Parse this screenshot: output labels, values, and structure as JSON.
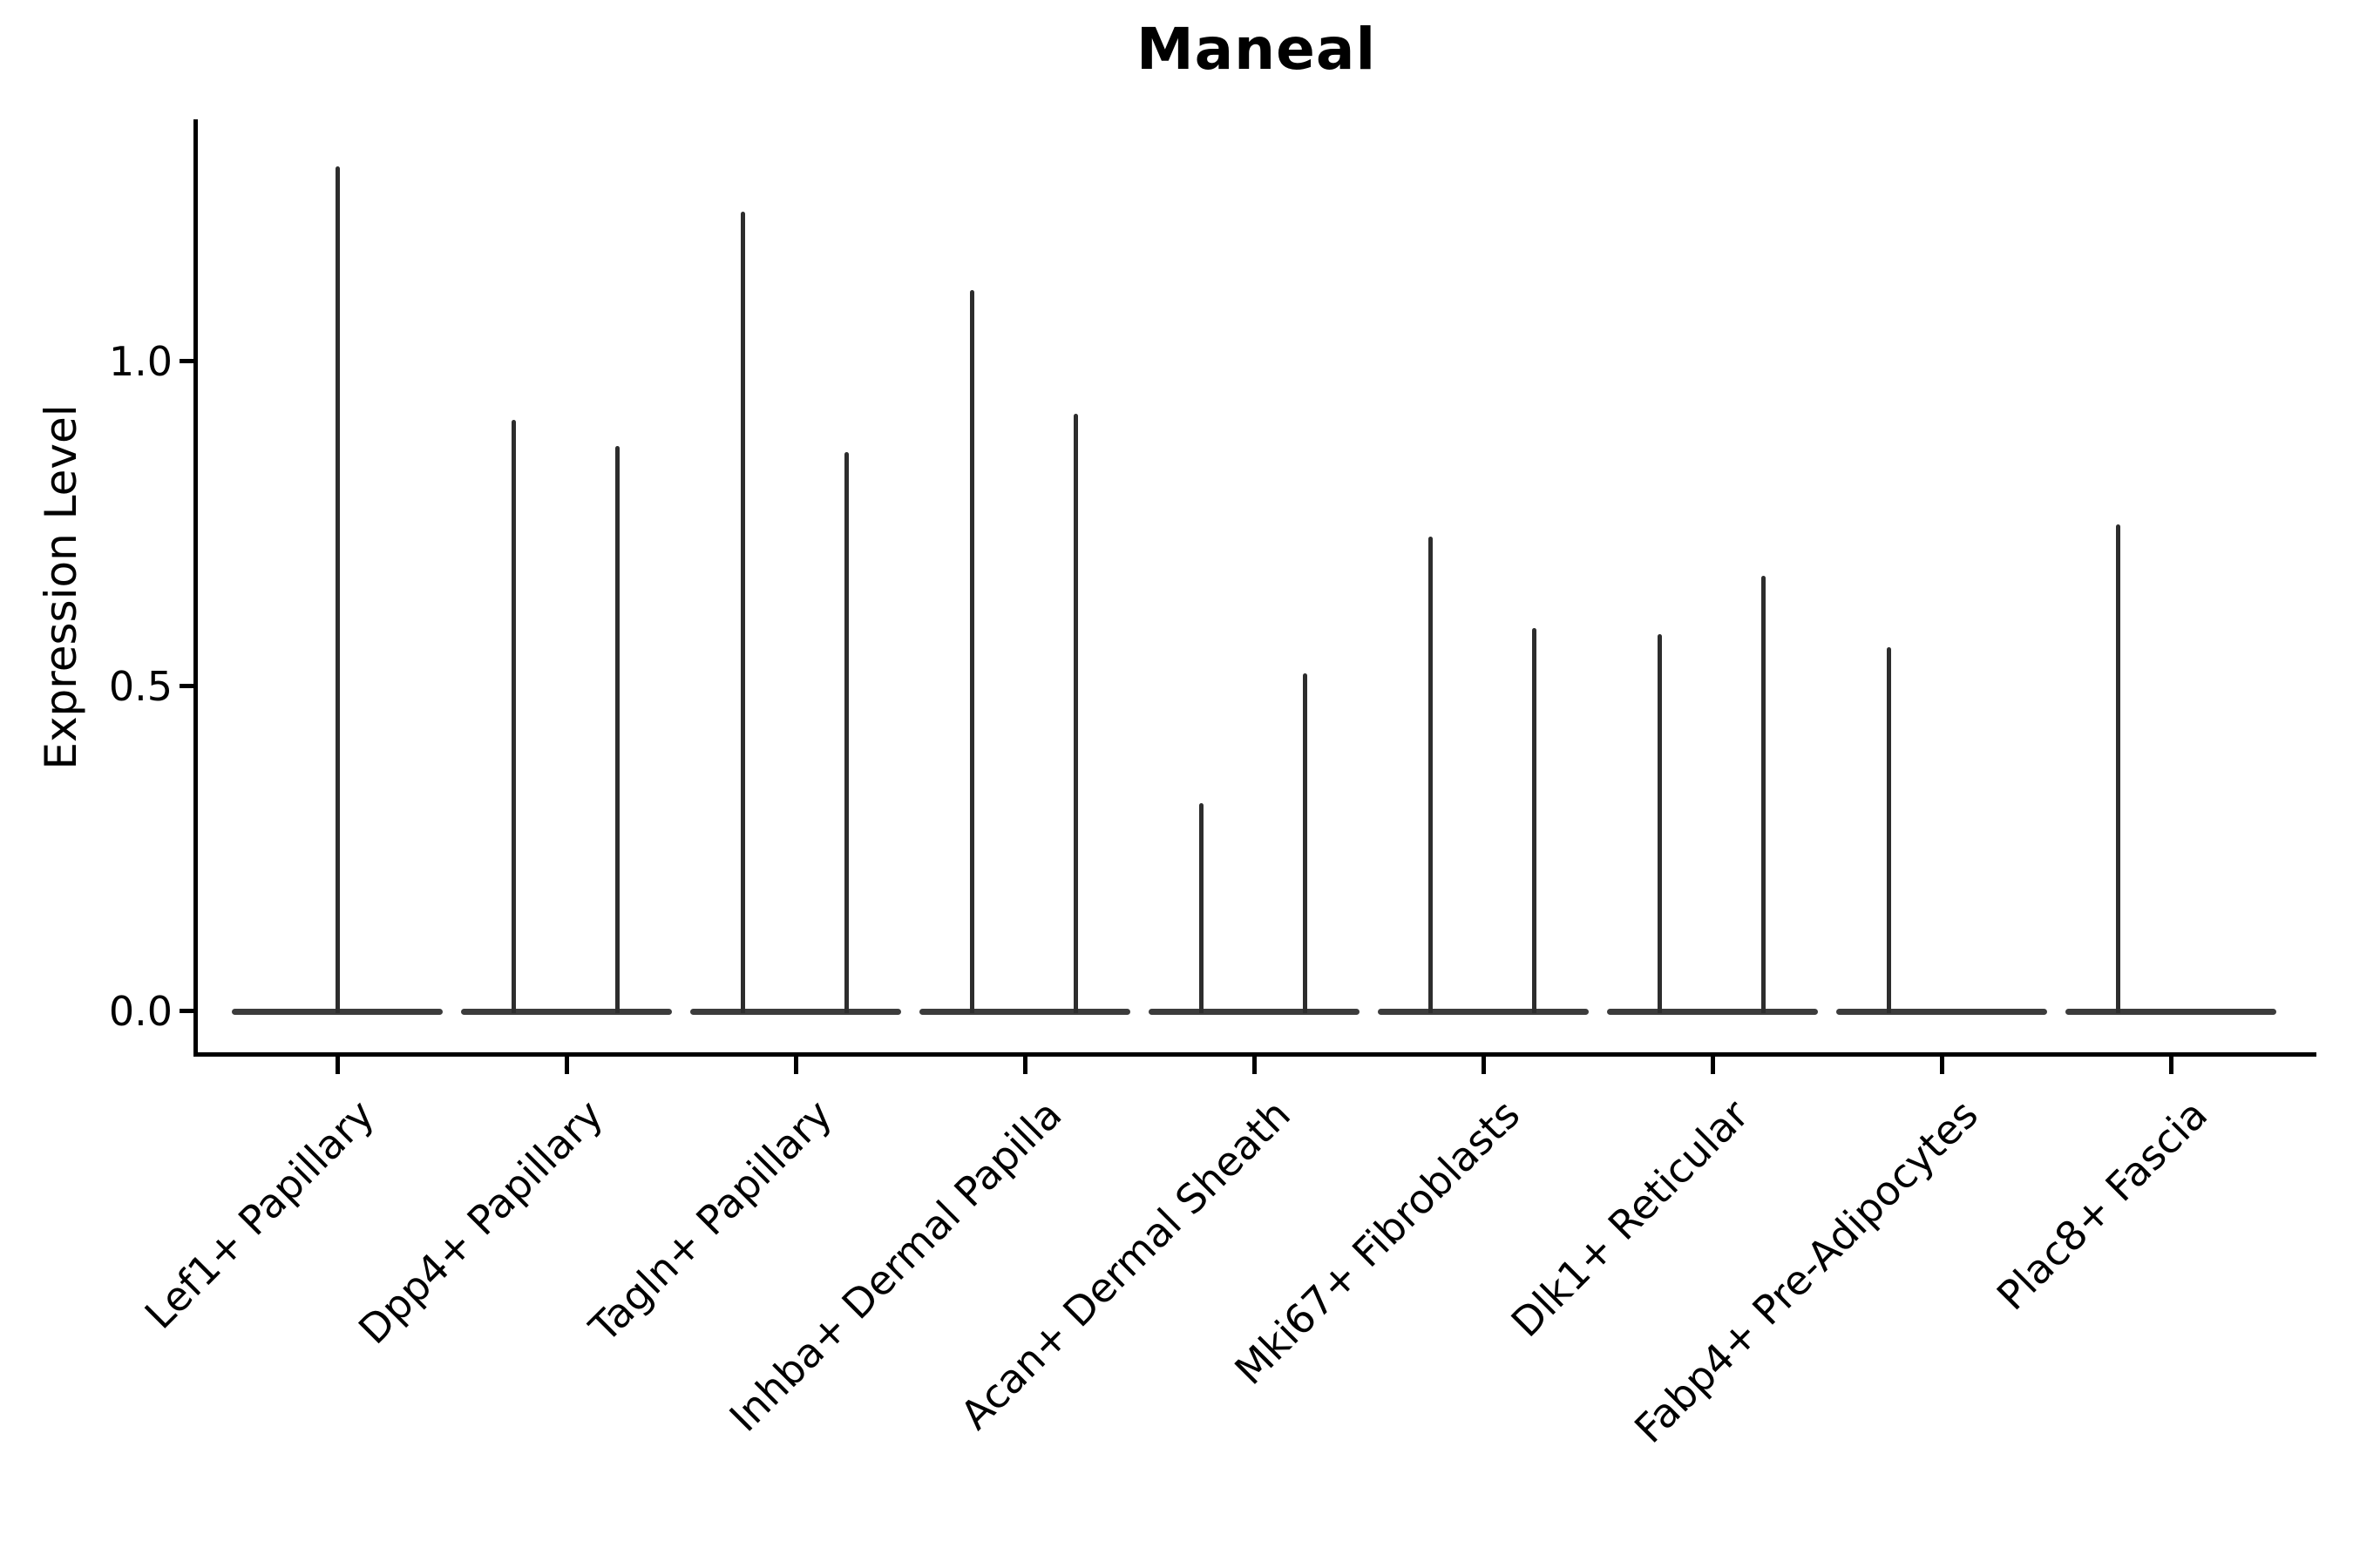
{
  "chart_data": {
    "type": "violin",
    "title": "Maneal",
    "title_weight": "bold",
    "ylabel": "Expression Level",
    "xlabel": "",
    "ytick_labels": [
      "1.0",
      "0.5",
      "0.0"
    ],
    "ytick_values": [
      1.0,
      0.5,
      0.0
    ],
    "ylim": [
      -0.07,
      1.37
    ],
    "grid": false,
    "legend": "none",
    "x_tick_rotation": 45,
    "categories": [
      "Lef1+ Papillary",
      "Dpp4+ Papillary",
      "Tagln+ Papillary",
      "Inhba+ Dermal Papilla",
      "Acan+ Dermal Sheath",
      "Mki67+ Fibroblasts",
      "Dlk1+ Reticular",
      "Fabp4+ Pre-Adipocytes",
      "Plac8+ Fascia"
    ],
    "series": [
      {
        "category": "Lef1+ Papillary",
        "violins": [
          {
            "group": "center",
            "max": 1.3
          }
        ]
      },
      {
        "category": "Dpp4+ Papillary",
        "violins": [
          {
            "group": "left",
            "max": 0.91
          },
          {
            "group": "right",
            "max": 0.87
          }
        ]
      },
      {
        "category": "Tagln+ Papillary",
        "violins": [
          {
            "group": "left",
            "max": 1.23
          },
          {
            "group": "right",
            "max": 0.86
          }
        ]
      },
      {
        "category": "Inhba+ Dermal Papilla",
        "violins": [
          {
            "group": "left",
            "max": 1.11
          },
          {
            "group": "right",
            "max": 0.92
          }
        ]
      },
      {
        "category": "Acan+ Dermal Sheath",
        "violins": [
          {
            "group": "left",
            "max": 0.32
          },
          {
            "group": "right",
            "max": 0.52
          }
        ]
      },
      {
        "category": "Mki67+ Fibroblasts",
        "violins": [
          {
            "group": "left",
            "max": 0.73
          },
          {
            "group": "right",
            "max": 0.59
          }
        ]
      },
      {
        "category": "Dlk1+ Reticular",
        "violins": [
          {
            "group": "left",
            "max": 0.58
          },
          {
            "group": "right",
            "max": 0.67
          }
        ]
      },
      {
        "category": "Fabp4+ Pre-Adipocytes",
        "violins": [
          {
            "group": "left",
            "max": 0.56
          },
          {
            "group": "right",
            "max": 0.0
          }
        ]
      },
      {
        "category": "Plac8+ Fascia",
        "violins": [
          {
            "group": "left",
            "max": 0.75
          },
          {
            "group": "right",
            "max": 0.0
          }
        ]
      }
    ],
    "colors": {
      "violin": "#2d2d2d",
      "base_band": "#3c3c3c",
      "axis": "#000000",
      "text": "#000000",
      "background": "#ffffff"
    }
  }
}
